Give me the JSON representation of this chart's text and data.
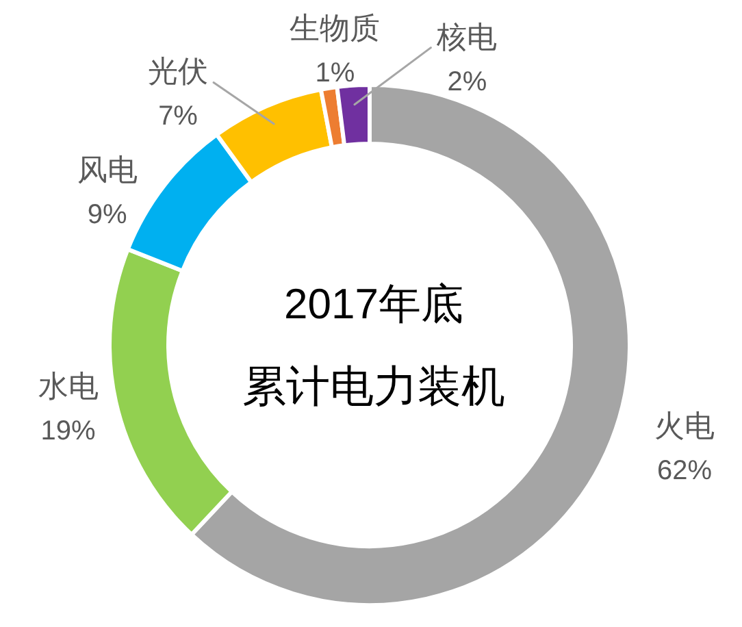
{
  "chart_data": {
    "type": "donut",
    "title": "2017年底",
    "subtitle": "累计电力装机",
    "categories": [
      "火电",
      "水电",
      "风电",
      "光伏",
      "生物质",
      "核电"
    ],
    "values": [
      62,
      19,
      9,
      7,
      1,
      2
    ],
    "colors": [
      "#a5a5a5",
      "#92d050",
      "#00b0f0",
      "#ffc000",
      "#ed7d31",
      "#7030a0"
    ],
    "value_labels": [
      "62%",
      "19%",
      "9%",
      "7%",
      "1%",
      "2%"
    ]
  }
}
